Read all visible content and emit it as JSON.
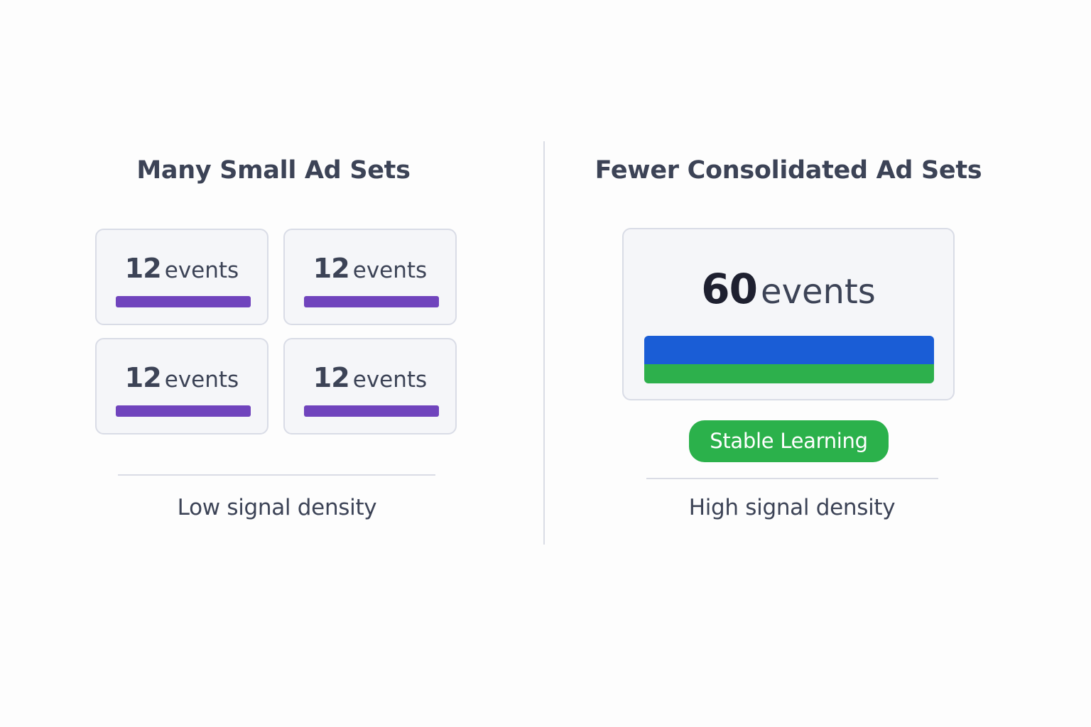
{
  "left_panel": {
    "title": "Many Small Ad Sets",
    "cards": [
      {
        "count": "12",
        "unit": "events"
      },
      {
        "count": "12",
        "unit": "events"
      },
      {
        "count": "12",
        "unit": "events"
      },
      {
        "count": "12",
        "unit": "events"
      }
    ],
    "caption": "Low signal density",
    "bar_color": "#7044bd"
  },
  "right_panel": {
    "title": "Fewer Consolidated Ad Sets",
    "card": {
      "count": "60",
      "unit": "events"
    },
    "badge": "Stable Learning",
    "caption": "High signal density",
    "bar_colors": [
      "#1a5dd6",
      "#2db04c"
    ],
    "badge_color": "#2bb14b"
  }
}
